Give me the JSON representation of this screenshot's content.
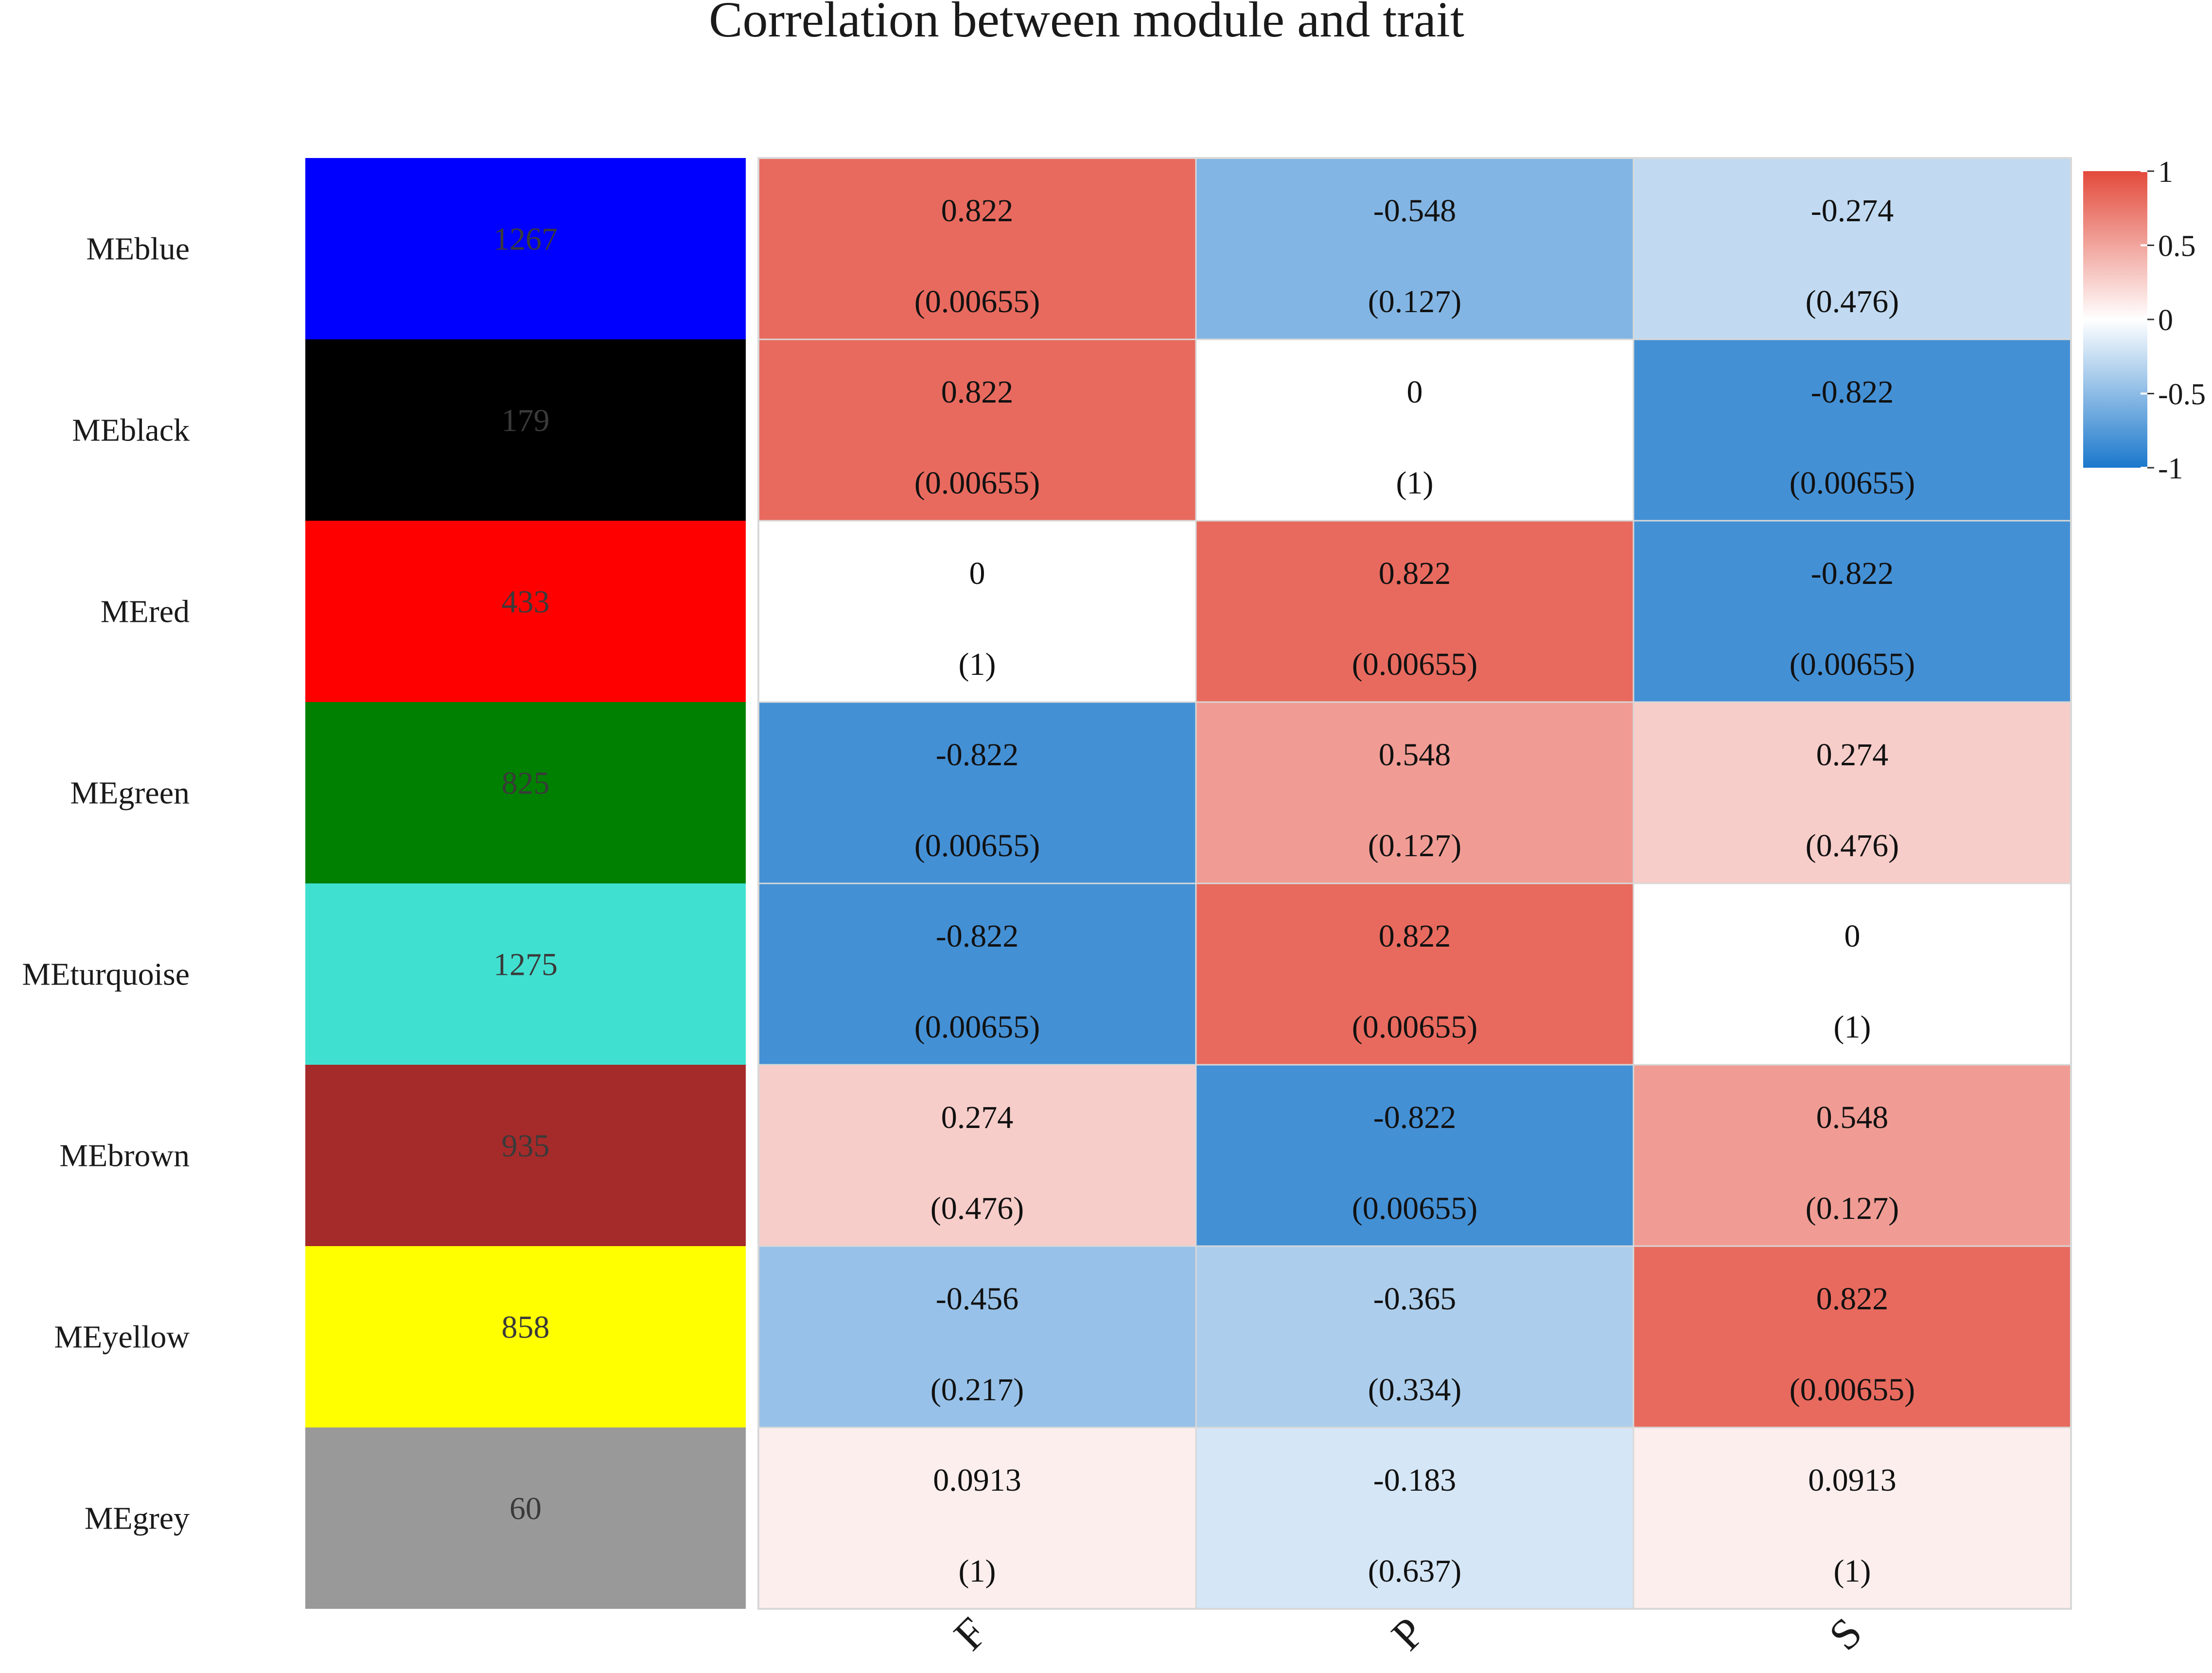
{
  "chart_data": {
    "type": "heatmap",
    "title": "Correlation between module and trait",
    "modules": [
      "MEblue",
      "MEblack",
      "MEred",
      "MEgreen",
      "MEturquoise",
      "MEbrown",
      "MEyellow",
      "MEgrey"
    ],
    "module_colors": [
      "#0000ff",
      "#000000",
      "#ff0000",
      "#008000",
      "#40e0d0",
      "#a52a2a",
      "#ffff00",
      "#999999"
    ],
    "module_sizes": [
      "1267",
      "179",
      "433",
      "825",
      "1275",
      "935",
      "858",
      "60"
    ],
    "traits": [
      "F",
      "P",
      "S"
    ],
    "correlation": [
      [
        "0.822",
        "-0.548",
        "-0.274"
      ],
      [
        "0.822",
        "0",
        "-0.822"
      ],
      [
        "0",
        "0.822",
        "-0.822"
      ],
      [
        "-0.822",
        "0.548",
        "0.274"
      ],
      [
        "-0.822",
        "0.822",
        "0"
      ],
      [
        "0.274",
        "-0.822",
        "0.548"
      ],
      [
        "-0.456",
        "-0.365",
        "0.822"
      ],
      [
        "0.0913",
        "-0.183",
        "0.0913"
      ]
    ],
    "pvalues": [
      [
        "(0.00655)",
        "(0.127)",
        "(0.476)"
      ],
      [
        "(0.00655)",
        "(1)",
        "(0.00655)"
      ],
      [
        "(1)",
        "(0.00655)",
        "(0.00655)"
      ],
      [
        "(0.00655)",
        "(0.127)",
        "(0.476)"
      ],
      [
        "(0.00655)",
        "(0.00655)",
        "(1)"
      ],
      [
        "(0.476)",
        "(0.00655)",
        "(0.127)"
      ],
      [
        "(0.217)",
        "(0.334)",
        "(0.00655)"
      ],
      [
        "(1)",
        "(0.637)",
        "(1)"
      ]
    ],
    "legend": {
      "ticks": [
        "1",
        "0.5",
        "0",
        "-0.5",
        "-1"
      ],
      "tick_values": [
        1,
        0.5,
        0,
        -0.5,
        -1
      ],
      "range": [
        -1,
        1
      ],
      "placement": "top-right"
    },
    "colors": {
      "positive": "#e34a3b",
      "neutral": "#ffffff",
      "negative": "#1b78cc",
      "grid": "#d8d8d8"
    }
  }
}
